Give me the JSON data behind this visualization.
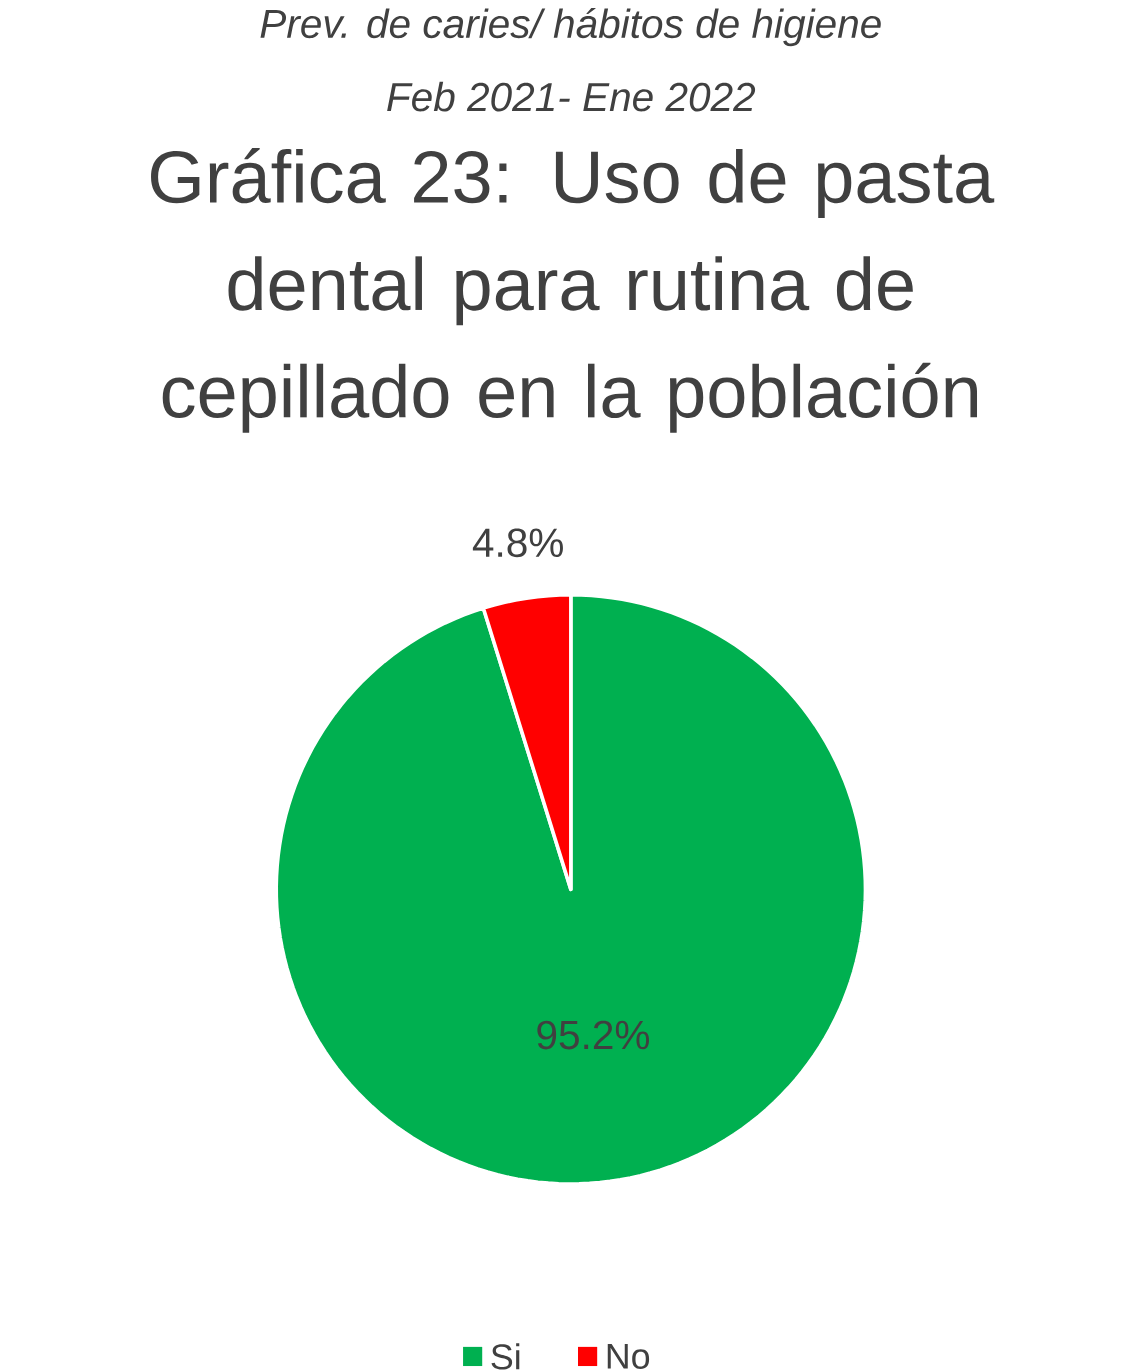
{
  "chart_data": {
    "type": "pie",
    "title": "Gráfica 23: Uso de pasta dental para rutina de cepillado en la población",
    "annotations": [
      "Prev. de caries/ hábitos de higiene",
      "Feb 2021- Ene 2022"
    ],
    "categories": [
      "Si",
      "No"
    ],
    "values": [
      95.2,
      4.8
    ],
    "colors": [
      "#00b050",
      "#ff0000"
    ],
    "value_labels": [
      "95.2%",
      "4.8%"
    ],
    "legend": "bottom"
  }
}
